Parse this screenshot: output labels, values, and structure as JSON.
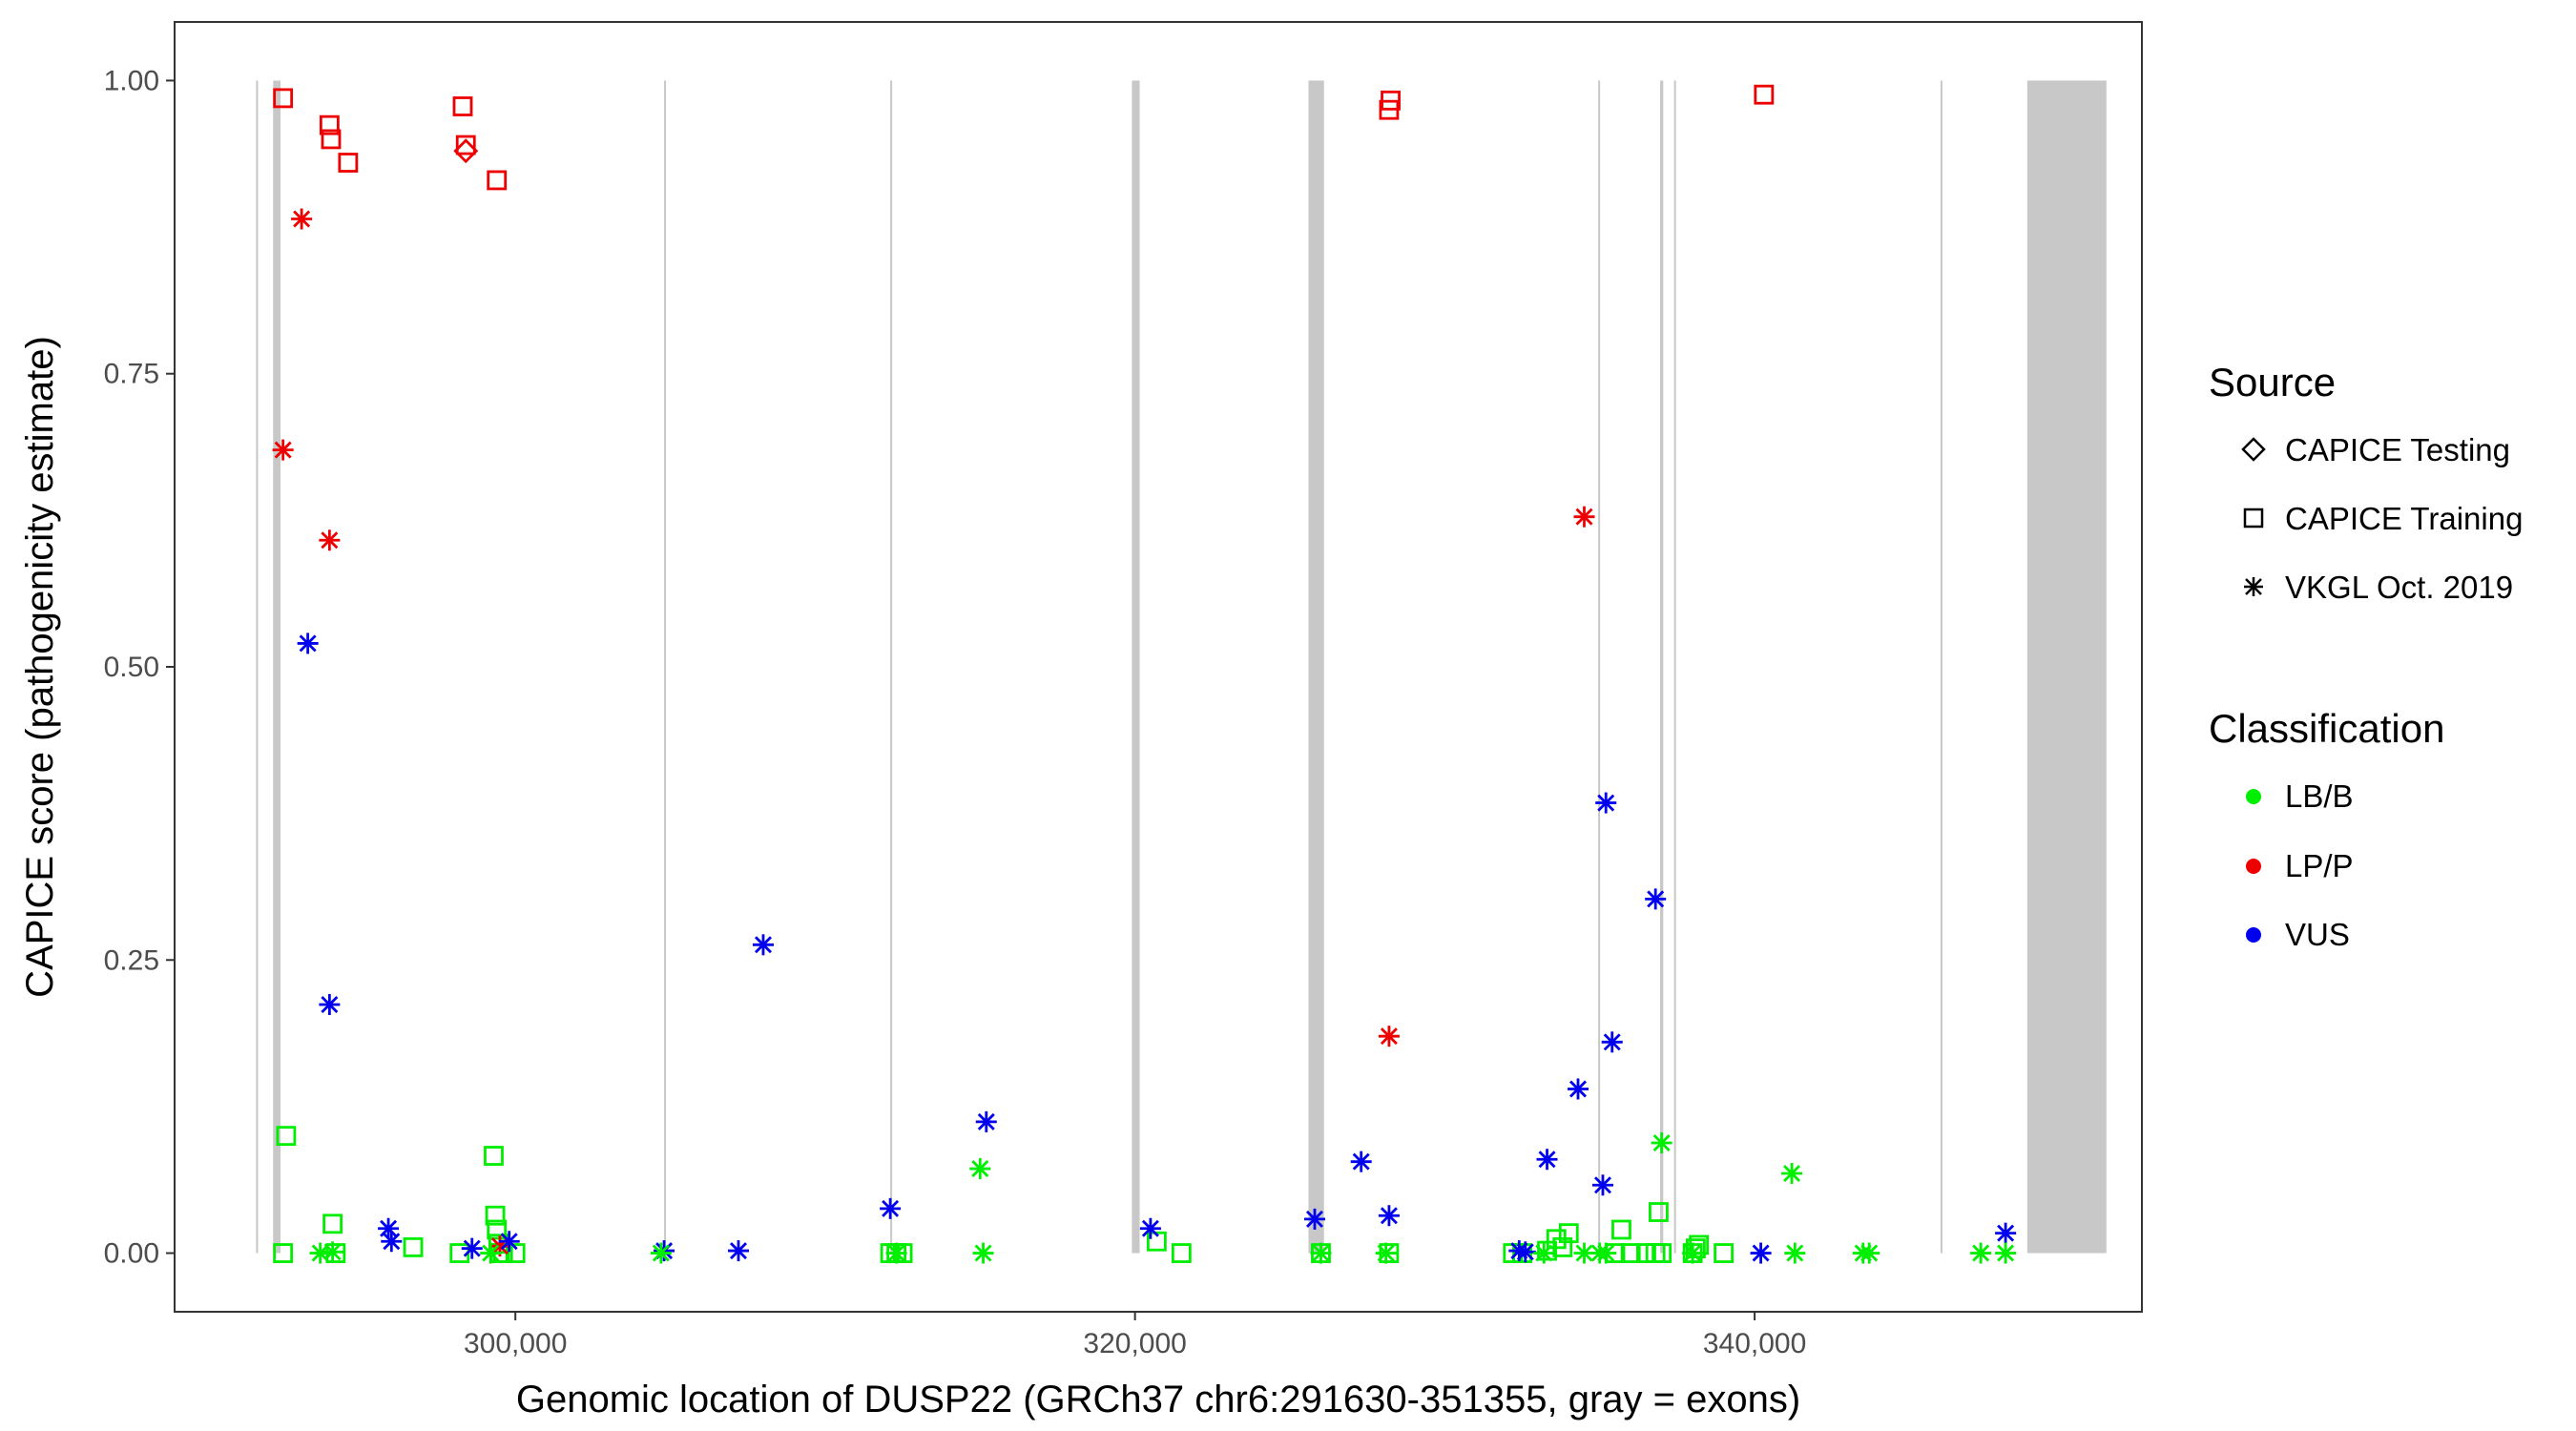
{
  "chart_data": {
    "type": "scatter",
    "xlabel": "Genomic location of DUSP22 (GRCh37 chr6:291630-351355, gray = exons)",
    "ylabel": "CAPICE score (pathogenicity estimate)",
    "xlim": [
      289000,
      352500
    ],
    "ylim": [
      -0.05,
      1.05
    ],
    "x_ticks": [
      300000,
      320000,
      340000
    ],
    "x_tick_labels": [
      "300,000",
      "320,000",
      "340,000"
    ],
    "y_ticks": [
      0.0,
      0.25,
      0.5,
      0.75,
      1.0
    ],
    "y_tick_labels": [
      "0.00",
      "0.25",
      "0.50",
      "0.75",
      "1.00"
    ],
    "grid": false,
    "legend_position": "right",
    "exons": [
      [
        291630,
        291680
      ],
      [
        292180,
        292420
      ],
      [
        304800,
        304860
      ],
      [
        312100,
        312160
      ],
      [
        319900,
        320150
      ],
      [
        325600,
        326100
      ],
      [
        334950,
        335000
      ],
      [
        336950,
        337050
      ],
      [
        337400,
        337450
      ],
      [
        346000,
        346050
      ],
      [
        348800,
        351355
      ]
    ],
    "legend": {
      "source_title": "Source",
      "source_items": [
        {
          "label": "CAPICE Testing",
          "shape": "diamond"
        },
        {
          "label": "CAPICE Training",
          "shape": "square"
        },
        {
          "label": "VKGL Oct. 2019",
          "shape": "asterisk"
        }
      ],
      "class_title": "Classification",
      "class_items": [
        {
          "label": "LB/B",
          "color": "#00ee00"
        },
        {
          "label": "LP/P",
          "color": "#ee0000"
        },
        {
          "label": "VUS",
          "color": "#0000ee"
        }
      ]
    },
    "series": [
      {
        "source": "CAPICE Testing",
        "classification": "LP/P",
        "x": [
          298400
        ],
        "y": [
          0.94
        ]
      },
      {
        "source": "CAPICE Training",
        "classification": "LP/P",
        "x": [
          292500,
          294000,
          294050,
          294600,
          298300,
          298400,
          299400,
          328200,
          328250,
          340300
        ],
        "y": [
          0.985,
          0.962,
          0.95,
          0.93,
          0.978,
          0.945,
          0.915,
          0.975,
          0.983,
          0.988
        ]
      },
      {
        "source": "CAPICE Training",
        "classification": "LB/B",
        "x": [
          292500,
          292600,
          294100,
          294200,
          296700,
          298200,
          299300,
          299350,
          299400,
          299450,
          299500,
          299600,
          300000,
          312100,
          312300,
          312500,
          320700,
          321500,
          326000,
          328200,
          332200,
          332500,
          333300,
          333600,
          333800,
          334000,
          335500,
          335700,
          336000,
          336500,
          336800,
          336900,
          337000,
          338000,
          338100,
          338200,
          339000
        ],
        "y": [
          0.0,
          0.1,
          0.025,
          0.0,
          0.005,
          0.0,
          0.083,
          0.032,
          0.02,
          0.008,
          0.0,
          0.0,
          0.0,
          0.0,
          0.0,
          0.0,
          0.01,
          0.0,
          0.0,
          0.0,
          0.0,
          0.0,
          0.002,
          0.012,
          0.005,
          0.017,
          0.0,
          0.02,
          0.0,
          0.0,
          0.0,
          0.035,
          0.0,
          0.0,
          0.004,
          0.007,
          0.0
        ]
      },
      {
        "source": "VKGL Oct. 2019",
        "classification": "LP/P",
        "x": [
          292500,
          293100,
          294000,
          299500,
          328200,
          334500
        ],
        "y": [
          0.685,
          0.882,
          0.608,
          0.006,
          0.185,
          0.628
        ]
      },
      {
        "source": "VKGL Oct. 2019",
        "classification": "VUS",
        "x": [
          293300,
          294000,
          295900,
          296000,
          298600,
          299800,
          304800,
          307200,
          308000,
          312100,
          315200,
          320500,
          325800,
          327300,
          328200,
          332400,
          332600,
          333300,
          334300,
          335100,
          335200,
          335400,
          336800,
          340200,
          348100
        ],
        "y": [
          0.52,
          0.212,
          0.021,
          0.01,
          0.004,
          0.01,
          0.002,
          0.002,
          0.263,
          0.038,
          0.112,
          0.021,
          0.029,
          0.078,
          0.032,
          0.002,
          0.001,
          0.08,
          0.14,
          0.058,
          0.384,
          0.18,
          0.302,
          0.0,
          0.017
        ]
      },
      {
        "source": "VKGL Oct. 2019",
        "classification": "LB/B",
        "x": [
          293700,
          294100,
          299200,
          304700,
          312300,
          315000,
          315100,
          326000,
          328100,
          333200,
          334500,
          335000,
          335200,
          337000,
          338000,
          341200,
          341300,
          343500,
          343700,
          347300,
          348100
        ],
        "y": [
          0.0,
          0.001,
          0.0,
          0.0,
          0.0,
          0.072,
          0.0,
          0.0,
          0.0,
          0.0,
          0.0,
          0.0,
          0.0,
          0.094,
          0.0,
          0.068,
          0.0,
          0.0,
          0.0,
          0.0,
          0.0
        ]
      }
    ]
  }
}
